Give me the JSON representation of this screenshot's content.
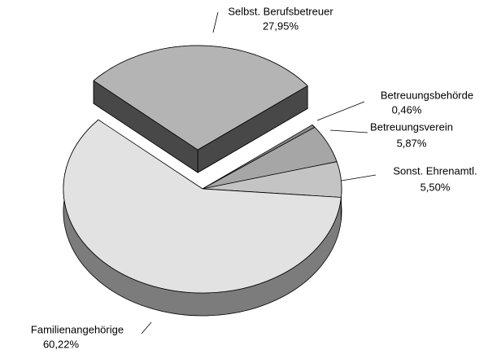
{
  "chart_data": {
    "type": "pie",
    "categories": [
      "Selbst. Berufsbetreuer",
      "Betreuungsbehörde",
      "Betreuungsverein",
      "Sonst. Ehrenamtl.",
      "Familienangehörige"
    ],
    "values": [
      27.95,
      0.46,
      5.87,
      5.5,
      60.22
    ],
    "value_labels": [
      "27,95%",
      "0,46%",
      "5,87%",
      "5,50%",
      "60,22%"
    ],
    "colors": [
      "#b4b4b4",
      "#8a8a8a",
      "#a6a6a6",
      "#c4c4c4",
      "#e2e2e2"
    ],
    "exploded": [
      true,
      false,
      false,
      false,
      false
    ]
  }
}
